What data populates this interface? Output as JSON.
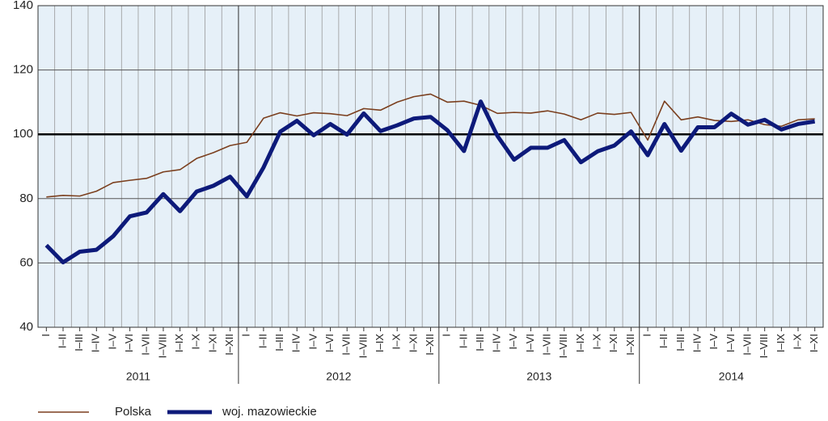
{
  "chart_data": {
    "type": "line",
    "categories": [
      "I",
      "I–II",
      "I–III",
      "I–IV",
      "I–V",
      "I–VI",
      "I–VII",
      "I–VIII",
      "I–IX",
      "I–X",
      "I–XI",
      "I–XII",
      "I",
      "I–II",
      "I–III",
      "I–IV",
      "I–V",
      "I–VI",
      "I–VII",
      "I–VIII",
      "I–IX",
      "I–X",
      "I–XI",
      "I–XII",
      "I",
      "I–II",
      "I–III",
      "I–IV",
      "I–V",
      "I–VI",
      "I–VII",
      "I–VIII",
      "I–IX",
      "I–X",
      "I–XI",
      "I–XII",
      "I",
      "I–II",
      "I–III",
      "I–IV",
      "I–V",
      "I–VI",
      "I–VII",
      "I–VIII",
      "I–IX",
      "I–X",
      "I–XI"
    ],
    "years": [
      "2011",
      "2012",
      "2013",
      "2014"
    ],
    "series": [
      {
        "name": "Polska",
        "color": "#7b3f1e",
        "width": 1.6,
        "values": [
          80.5,
          81,
          80.8,
          82.3,
          85,
          85.7,
          86.3,
          88.3,
          89,
          92.5,
          94.3,
          96.5,
          97.5,
          105,
          106.7,
          105.7,
          106.7,
          106.4,
          105.8,
          108,
          107.5,
          110,
          111.7,
          112.5,
          110,
          110.3,
          109,
          106.5,
          106.8,
          106.6,
          107.3,
          106.3,
          104.5,
          106.6,
          106.2,
          106.8,
          98.2,
          110.3,
          104.5,
          105.4,
          104.3,
          104,
          104.5,
          103,
          102.5,
          104.5,
          104.8
        ]
      },
      {
        "name": "woj. mazowieckie",
        "color": "#0d1a7a",
        "width": 5,
        "values": [
          65.5,
          60.2,
          63.5,
          64.1,
          68.3,
          74.5,
          75.7,
          81.4,
          76.1,
          82.2,
          84,
          86.8,
          80.7,
          89.7,
          100.8,
          104.2,
          99.7,
          103.2,
          99.9,
          106.5,
          101,
          102.8,
          104.9,
          105.4,
          101.3,
          94.8,
          110.2,
          99.5,
          92.1,
          95.8,
          95.8,
          98.2,
          91.3,
          94.7,
          96.5,
          100.9,
          93.5,
          103.2,
          94.9,
          102.2,
          102.2,
          106.4,
          103,
          104.5,
          101.5,
          103.2,
          104
        ]
      }
    ],
    "ylim": [
      40,
      140
    ],
    "yticks": [
      40,
      60,
      80,
      100,
      120,
      140
    ],
    "grid": true,
    "reference_line": 100
  }
}
